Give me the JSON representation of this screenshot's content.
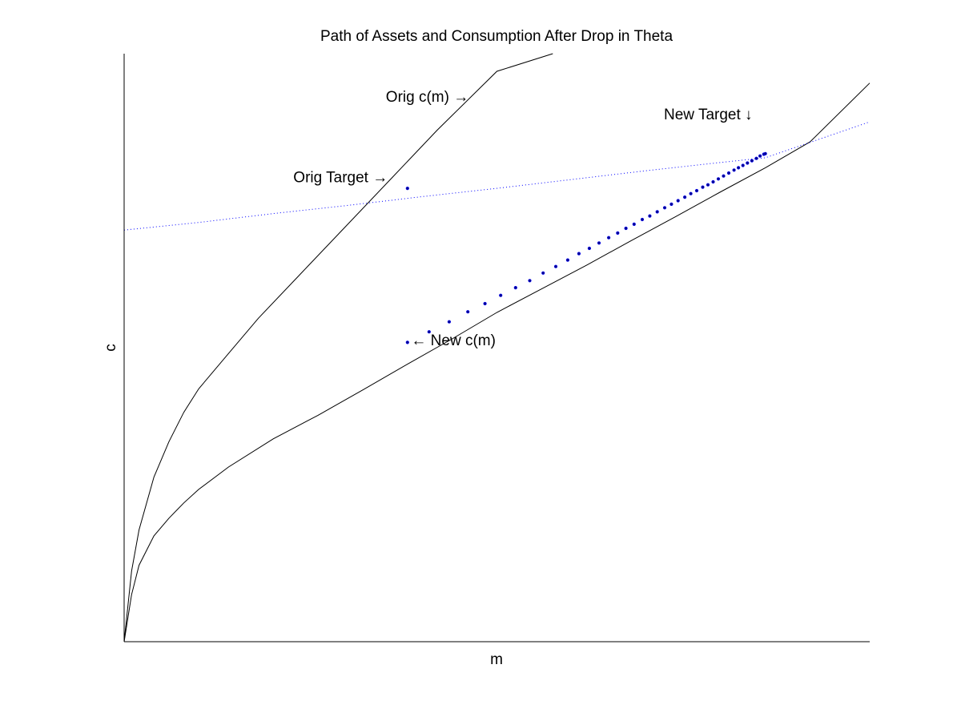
{
  "chart_data": {
    "type": "line",
    "title": "Path of Assets and Consumption After Drop in Theta",
    "xlabel": "m",
    "ylabel": "c",
    "xlim": [
      0,
      1
    ],
    "ylim": [
      0,
      1
    ],
    "grid": false,
    "x_ticks": [],
    "y_ticks": [],
    "colors": {
      "curve": "#000000",
      "dotted_line": "#0000ff",
      "path_marker": "#00008b"
    },
    "series": [
      {
        "style": "solid-black",
        "x": [
          0.0,
          0.01,
          0.02,
          0.04,
          0.06,
          0.08,
          0.1,
          0.14,
          0.18,
          0.24,
          0.3,
          0.36,
          0.42,
          0.5,
          0.575
        ],
        "y": [
          0.0,
          0.12,
          0.19,
          0.28,
          0.34,
          0.39,
          0.43,
          0.49,
          0.55,
          0.63,
          0.71,
          0.79,
          0.87,
          0.97,
          1.0
        ]
      },
      {
        "style": "solid-black",
        "x": [
          0.0,
          0.01,
          0.02,
          0.04,
          0.06,
          0.08,
          0.1,
          0.14,
          0.2,
          0.26,
          0.32,
          0.38,
          0.44,
          0.5,
          0.56,
          0.62,
          0.68,
          0.74,
          0.8,
          0.86,
          0.92,
          1.0
        ],
        "y": [
          0.0,
          0.08,
          0.13,
          0.18,
          0.21,
          0.236,
          0.259,
          0.297,
          0.345,
          0.385,
          0.428,
          0.472,
          0.515,
          0.56,
          0.6,
          0.64,
          0.682,
          0.723,
          0.765,
          0.806,
          0.85,
          0.95
        ]
      },
      {
        "style": "dotted-blue",
        "x": [
          0.0,
          0.1,
          0.2,
          0.3,
          0.4,
          0.5,
          0.6,
          0.7,
          0.8,
          0.86,
          1.0
        ],
        "y": [
          0.7,
          0.713,
          0.728,
          0.742,
          0.757,
          0.771,
          0.786,
          0.801,
          0.815,
          0.823,
          0.884
        ]
      },
      {
        "style": "markers-blue",
        "x": [
          0.38,
          0.409,
          0.436,
          0.461,
          0.484,
          0.505,
          0.525,
          0.544,
          0.562,
          0.579,
          0.595,
          0.61,
          0.624,
          0.637,
          0.65,
          0.662,
          0.673,
          0.684,
          0.695,
          0.705,
          0.715,
          0.725,
          0.734,
          0.743,
          0.752,
          0.76,
          0.768,
          0.776,
          0.783,
          0.79,
          0.797,
          0.804,
          0.811,
          0.818,
          0.824,
          0.83,
          0.836,
          0.842,
          0.848,
          0.853,
          0.858,
          0.86
        ],
        "y": [
          0.509,
          0.527,
          0.544,
          0.561,
          0.575,
          0.589,
          0.602,
          0.614,
          0.627,
          0.638,
          0.649,
          0.66,
          0.669,
          0.678,
          0.687,
          0.695,
          0.703,
          0.71,
          0.718,
          0.724,
          0.731,
          0.738,
          0.744,
          0.75,
          0.756,
          0.762,
          0.767,
          0.773,
          0.777,
          0.782,
          0.787,
          0.792,
          0.797,
          0.802,
          0.806,
          0.81,
          0.814,
          0.818,
          0.822,
          0.826,
          0.829,
          0.83
        ]
      },
      {
        "style": "marker-blue",
        "x": [
          0.38
        ],
        "y": [
          0.771
        ]
      }
    ],
    "annotations": [
      {
        "text": "Orig c(m) →",
        "x": 0.351,
        "y": 0.918
      },
      {
        "text": "New Target ↓",
        "x": 0.724,
        "y": 0.888
      },
      {
        "text": "Orig Target →",
        "x": 0.227,
        "y": 0.781
      },
      {
        "text": "← New c(m)",
        "x": 0.385,
        "y": 0.504
      }
    ]
  }
}
